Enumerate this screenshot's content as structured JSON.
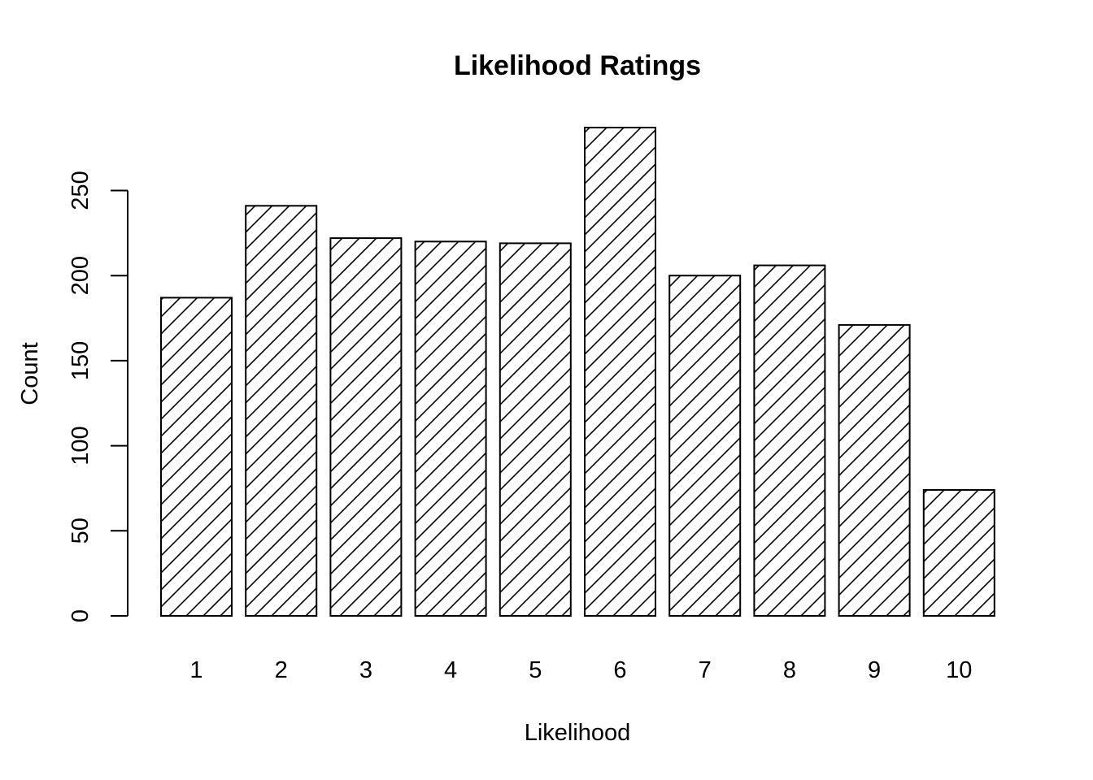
{
  "chart_data": {
    "type": "bar",
    "title": "Likelihood Ratings",
    "xlabel": "Likelihood",
    "ylabel": "Count",
    "categories": [
      "1",
      "2",
      "3",
      "4",
      "5",
      "6",
      "7",
      "8",
      "9",
      "10"
    ],
    "values": [
      187,
      241,
      222,
      220,
      219,
      287,
      200,
      206,
      171,
      74
    ],
    "ylim": [
      0,
      287
    ],
    "yticks": [
      0,
      50,
      100,
      150,
      200,
      250
    ],
    "ytick_labels": [
      "0",
      "50",
      "100",
      "150",
      "200",
      "250"
    ],
    "bar_fill": "diagonal-hatch",
    "bar_color": "#000000",
    "background": "#ffffff",
    "grid": false,
    "legend": "none"
  }
}
